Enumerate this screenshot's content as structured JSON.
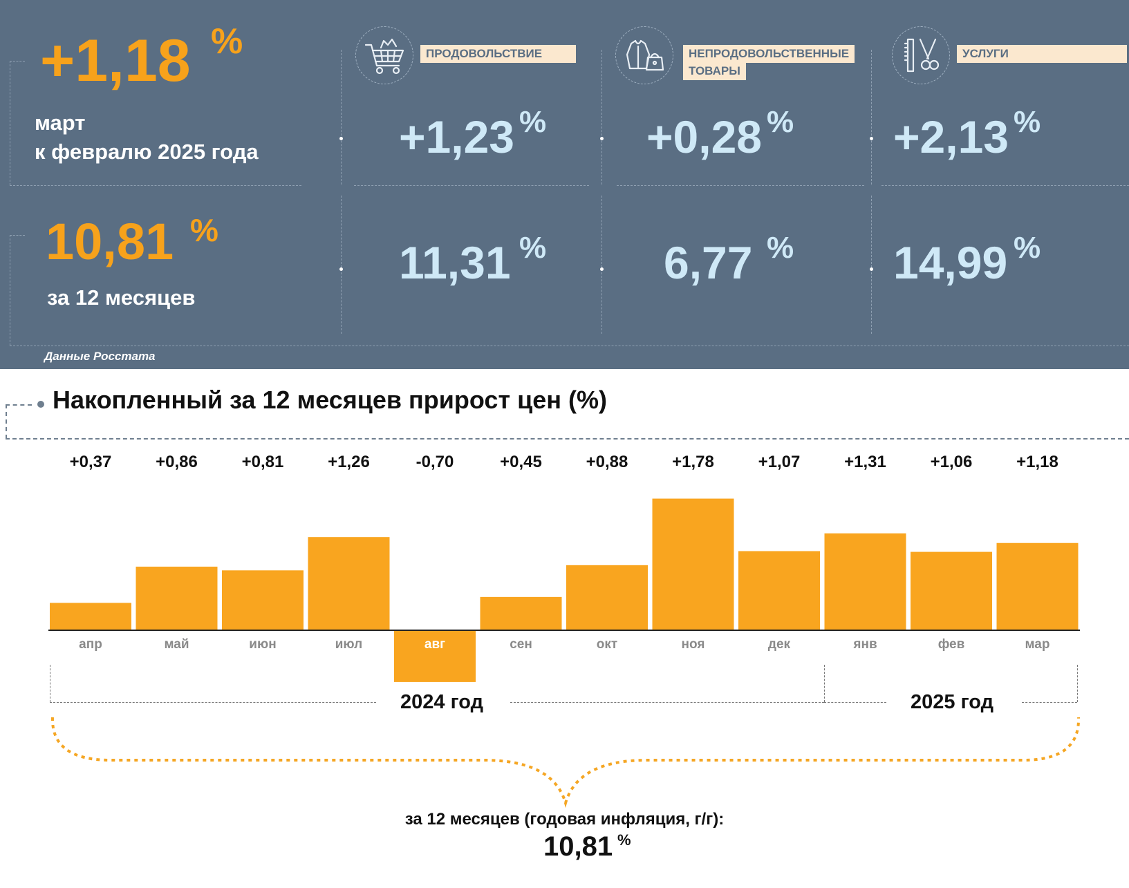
{
  "header": {
    "monthly": {
      "value": "+1,18",
      "unit": "%",
      "line1": "март",
      "line2": "к февралю 2025 года"
    },
    "annual": {
      "value": "10,81",
      "unit": "%",
      "label": "за 12 месяцев"
    },
    "categories": [
      {
        "name": "ПРОДОВОЛЬСТВИЕ",
        "icon": "shopping-cart-icon",
        "monthly": "+1,23",
        "annual": "11,31",
        "unit": "%"
      },
      {
        "name_line1": "НЕПРОДОВОЛЬСТВЕННЫЕ",
        "name_line2": "ТОВАРЫ",
        "icon": "clothing-bag-icon",
        "monthly": "+0,28",
        "annual": "6,77",
        "unit": "%"
      },
      {
        "name": "УСЛУГИ",
        "icon": "comb-scissors-icon",
        "monthly": "+2,13",
        "annual": "14,99",
        "unit": "%"
      }
    ],
    "source": "Данные Росстата"
  },
  "chart_data": {
    "type": "bar",
    "title": "Накопленный за 12 месяцев прирост цен (%)",
    "categories": [
      "апр",
      "май",
      "июн",
      "июл",
      "авг",
      "сен",
      "окт",
      "ноя",
      "дек",
      "янв",
      "фев",
      "мар"
    ],
    "values": [
      0.37,
      0.86,
      0.81,
      1.26,
      -0.7,
      0.45,
      0.88,
      1.78,
      1.07,
      1.31,
      1.06,
      1.18
    ],
    "value_labels": [
      "+0,37",
      "+0,86",
      "+0,81",
      "+1,26",
      "-0,70",
      "+0,45",
      "+0,88",
      "+1,78",
      "+1,07",
      "+1,31",
      "+1,06",
      "+1,18"
    ],
    "year_groups": [
      {
        "label": "2024 год",
        "from": 0,
        "to": 8
      },
      {
        "label": "2025 год",
        "from": 9,
        "to": 11
      }
    ],
    "total_label": "за 12 месяцев (годовая инфляция, г/г):",
    "total_value": "10,81",
    "total_unit": "%",
    "bar_color": "#f9a51f",
    "grid": false,
    "legend": "none"
  },
  "colors": {
    "panel": "#5a6e83",
    "accent_orange": "#f7a21b",
    "accent_blue": "#cfe9f7",
    "bar": "#f9a51f"
  }
}
